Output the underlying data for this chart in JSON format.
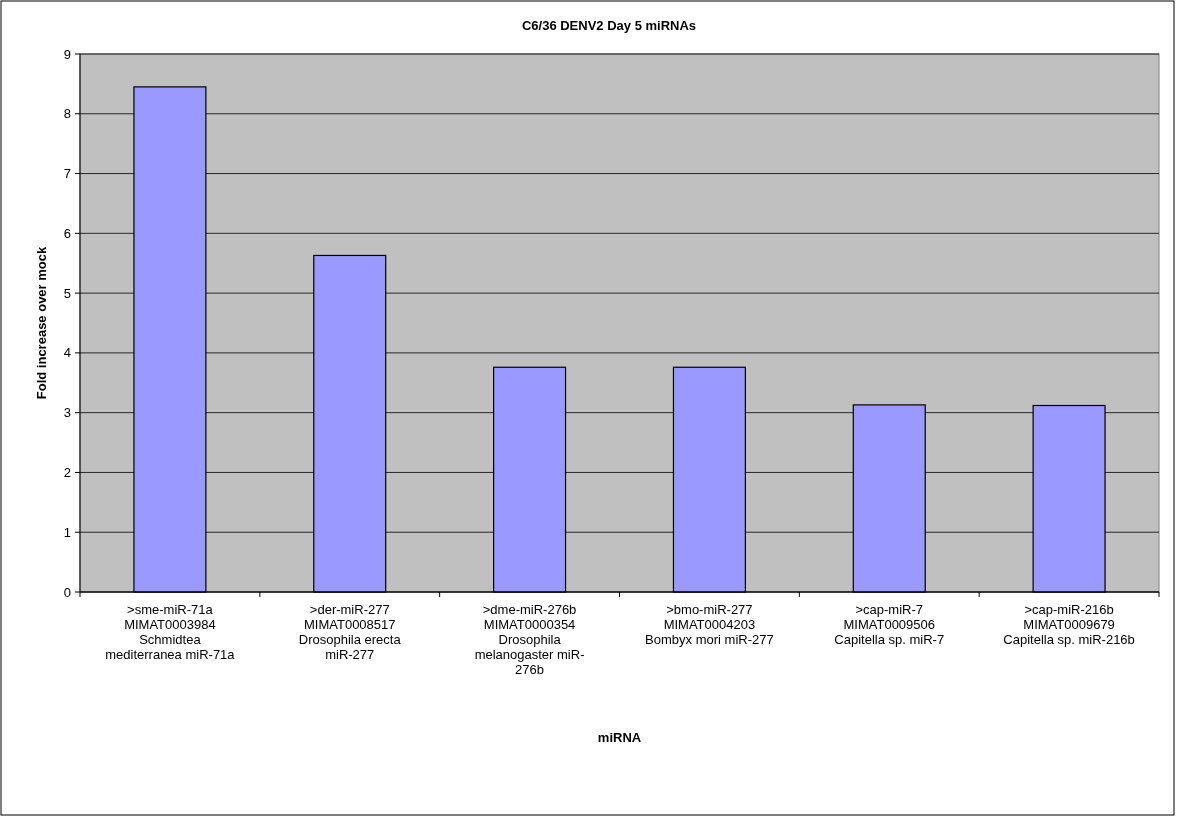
{
  "chart_data": {
    "type": "bar",
    "title": "C6/36 DENV2 Day 5 miRNAs",
    "xlabel": "miRNA",
    "ylabel": "Fold increase over mock",
    "categories": [
      ">sme-miR-71a\nMIMAT0003984\nSchmidtea\nmediterranea miR-71a",
      ">der-miR-277\nMIMAT0008517\nDrosophila erecta\nmiR-277",
      ">dme-miR-276b\nMIMAT0000354\nDrosophila\nmelanogaster miR-\n276b",
      ">bmo-miR-277\nMIMAT0004203\nBombyx mori miR-277",
      ">cap-miR-7\nMIMAT0009506\nCapitella sp. miR-7",
      ">cap-miR-216b\nMIMAT0009679\nCapitella sp. miR-216b"
    ],
    "values": [
      8.45,
      5.63,
      3.76,
      3.76,
      3.13,
      3.12
    ],
    "color": "#9999ff",
    "ylim": [
      0,
      9
    ],
    "yticks": [
      0,
      1,
      2,
      3,
      4,
      5,
      6,
      7,
      8,
      9
    ],
    "grid": "y"
  }
}
